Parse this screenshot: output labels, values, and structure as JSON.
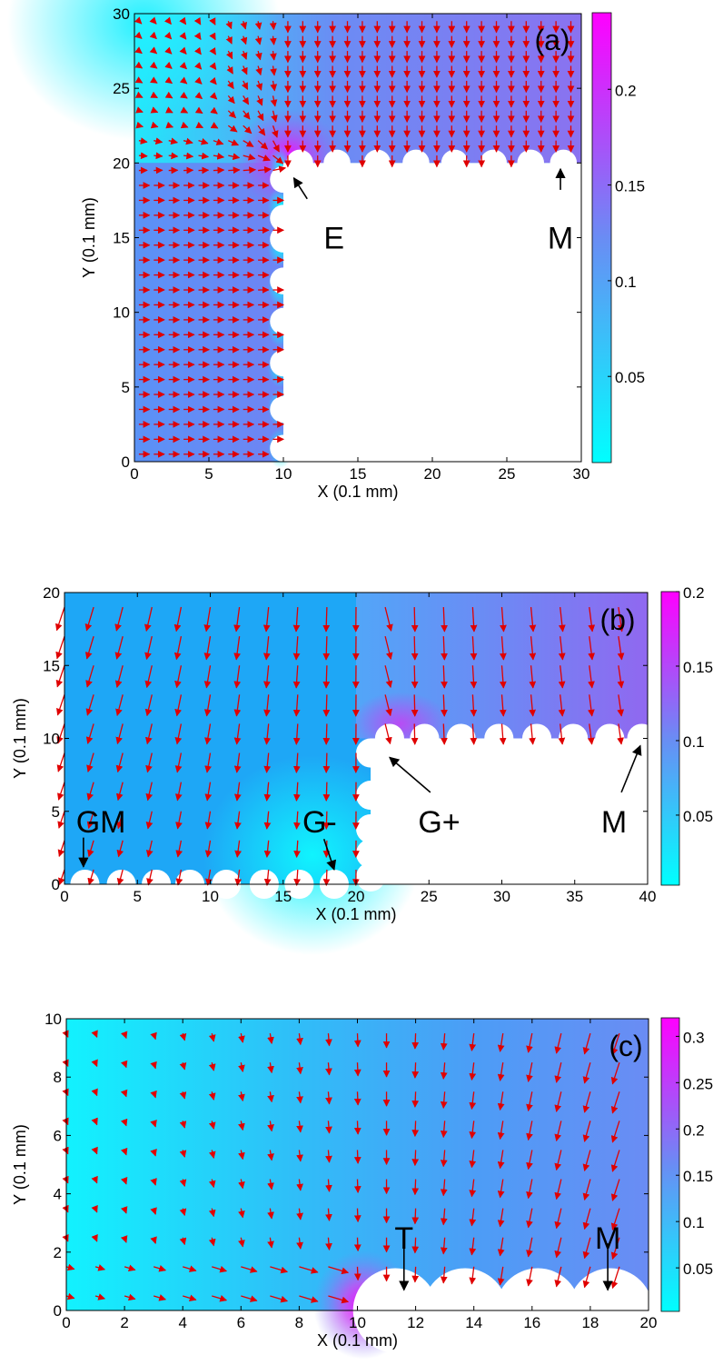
{
  "chart_data": [
    {
      "type": "heatmap",
      "panel_label": "(a)",
      "xlabel": "X (0.1 mm)",
      "ylabel": "Y (0.1 mm)",
      "xlim": [
        0,
        30
      ],
      "ylim": [
        0,
        30
      ],
      "xticks": [
        0,
        5,
        10,
        15,
        20,
        25,
        30
      ],
      "yticks": [
        0,
        5,
        10,
        15,
        20,
        25,
        30
      ],
      "colorbar": {
        "range": [
          0.005,
          0.24
        ],
        "ticks": [
          0.05,
          0.1,
          0.15,
          0.2
        ],
        "colors": [
          "#00ffff",
          "#ff00ff"
        ]
      },
      "obstacle": {
        "x_from": 10,
        "y_to": 20
      },
      "bumps": {
        "vertical_edge_x": 10,
        "vertical_centers_y": [
          0.9,
          3.5,
          6.6,
          9.4,
          12.1,
          14.9,
          16.3,
          18.9
        ],
        "horizontal_edge_y": 20,
        "horizontal_centers_x": [
          11.1,
          13.6,
          16.3,
          18.9,
          21.5,
          24.1,
          26.6,
          28.8
        ],
        "radius": 0.9
      },
      "arrow_field": {
        "type": "quiver",
        "grid_step": 1.0,
        "color": "#e00000",
        "description_flow": "rightward left of corner, downward above corner"
      },
      "annotations": [
        {
          "text": "E",
          "x": 13.4,
          "y": 15,
          "arrow_from": [
            11.6,
            17.6
          ],
          "arrow_to": [
            10.7,
            19.0
          ]
        },
        {
          "text": "M",
          "x": 28.6,
          "y": 15,
          "arrow_from": [
            28.6,
            18.2
          ],
          "arrow_to": [
            28.6,
            19.6
          ]
        }
      ]
    },
    {
      "type": "heatmap",
      "panel_label": "(b)",
      "xlabel": "X (0.1 mm)",
      "ylabel": "Y (0.1 mm)",
      "xlim": [
        0,
        40
      ],
      "ylim": [
        0,
        20
      ],
      "xticks": [
        0,
        5,
        10,
        15,
        20,
        25,
        30,
        35,
        40
      ],
      "yticks": [
        0,
        5,
        10,
        15,
        20
      ],
      "colorbar": {
        "range": [
          0.003,
          0.2
        ],
        "ticks": [
          0.05,
          0.1,
          0.15,
          0.2
        ],
        "colors": [
          "#00ffff",
          "#ff00ff"
        ]
      },
      "obstacle": {
        "x_from": 21,
        "y_to": 10
      },
      "bumps": {
        "vertical_edge_x": 21,
        "vertical_centers_y": [
          0.5,
          2.1,
          3.8,
          6.1,
          9.0
        ],
        "horizontal_edge_y": 10,
        "horizontal_centers_x": [
          22.3,
          24.7,
          27.2,
          29.8,
          32.4,
          34.9,
          37.4,
          39.6
        ],
        "bottom_edge_y": 0,
        "bottom_centers_x": [
          1.4,
          3.9,
          6.3,
          8.6,
          11.1,
          13.7,
          16.1,
          18.5
        ],
        "radius": 1.0
      },
      "arrow_field": {
        "type": "quiver",
        "grid_step": 2.0,
        "color": "#e00000",
        "description_flow": "downward everywhere, converging toward corner"
      },
      "annotations": [
        {
          "text": "GM",
          "x": 2.5,
          "y": 4.3,
          "arrow_from": [
            1.3,
            3.2
          ],
          "arrow_to": [
            1.3,
            1.2
          ]
        },
        {
          "text": "G-",
          "x": 17.5,
          "y": 4.3,
          "arrow_from": [
            17.8,
            3.1
          ],
          "arrow_to": [
            18.5,
            1.0
          ]
        },
        {
          "text": "G+",
          "x": 25.7,
          "y": 4.3,
          "arrow_from": [
            25.1,
            6.3
          ],
          "arrow_to": [
            22.3,
            8.7
          ]
        },
        {
          "text": "M",
          "x": 37.7,
          "y": 4.3,
          "arrow_from": [
            38.2,
            6.3
          ],
          "arrow_to": [
            39.5,
            9.5
          ]
        }
      ]
    },
    {
      "type": "heatmap",
      "panel_label": "(c)",
      "xlabel": "X (0.1 mm)",
      "ylabel": "Y (0.1 mm)",
      "xlim": [
        0,
        20
      ],
      "ylim": [
        0,
        10
      ],
      "xticks": [
        0,
        2,
        4,
        6,
        8,
        10,
        12,
        14,
        16,
        18,
        20
      ],
      "yticks": [
        0,
        2,
        4,
        6,
        8,
        10
      ],
      "colorbar": {
        "range": [
          0.003,
          0.32
        ],
        "ticks": [
          0.05,
          0.1,
          0.15,
          0.2,
          0.25,
          0.3
        ],
        "colors": [
          "#00ffff",
          "#ff00ff"
        ]
      },
      "bumps": {
        "bottom_edge_y": 0,
        "bottom_centers_x": [
          11.3,
          13.7,
          16.2,
          18.7
        ],
        "radius": 1.0
      },
      "arrow_field": {
        "type": "quiver",
        "grid_step": 1.0,
        "color": "#e00000",
        "description_flow": "downward, converging toward bottom right"
      },
      "annotations": [
        {
          "text": "T",
          "x": 11.6,
          "y": 2.5,
          "arrow_from": [
            11.6,
            2.3
          ],
          "arrow_to": [
            11.6,
            0.7
          ]
        },
        {
          "text": "M",
          "x": 18.6,
          "y": 2.5,
          "arrow_from": [
            18.6,
            2.3
          ],
          "arrow_to": [
            18.6,
            0.7
          ]
        }
      ]
    }
  ]
}
